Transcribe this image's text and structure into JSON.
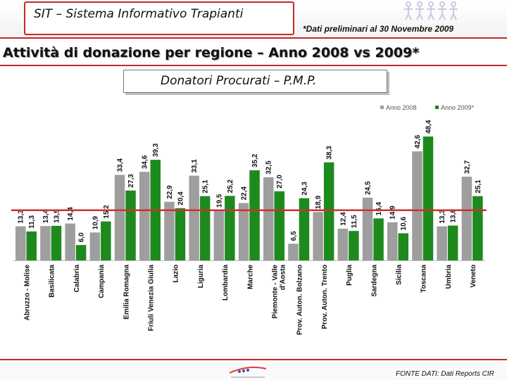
{
  "header": {
    "app_title": "SIT – Sistema Informativo Trapianti",
    "note": "*Dati preliminari al 30 Novembre 2009"
  },
  "page_title": "Attività di donazione per regione – Anno 2008 vs 2009*",
  "subtitle": "Donatori Procurati – P.M.P.",
  "footer": {
    "source": "FONTE DATI: Dati Reports CIR"
  },
  "colors": {
    "series_2008": "#9e9e9e",
    "series_2009": "#1e8a1e",
    "reference_line": "#d32f2f",
    "accent": "#c62828"
  },
  "chart_data": {
    "type": "bar",
    "title": "Donatori Procurati – P.M.P.",
    "categories": [
      "Abruzzo - Molise",
      "Basilicata",
      "Calabria",
      "Campania",
      "Emilia Romagna",
      "Friuli Venezia Giulia",
      "Lazio",
      "Liguria",
      "Lombardia",
      "Marche",
      "Piemonte - Valle d'Aosta",
      "Prov. Auton. Bolzano",
      "Prov. Auton. Trento",
      "Puglia",
      "Sardegna",
      "Sicilia",
      "Toscana",
      "Umbria",
      "Veneto"
    ],
    "series": [
      {
        "name": "Anno 2008",
        "values": [
          13.3,
          13.4,
          14.4,
          10.9,
          33.4,
          34.6,
          22.9,
          33.1,
          19.5,
          22.4,
          32.5,
          6.5,
          18.9,
          12.4,
          24.5,
          14.9,
          42.6,
          13.3,
          32.7
        ]
      },
      {
        "name": "Anno 2009*",
        "values": [
          11.3,
          13.5,
          6.0,
          15.2,
          27.3,
          39.3,
          20.4,
          25.1,
          25.2,
          35.2,
          27.0,
          24.3,
          38.3,
          11.5,
          16.4,
          10.6,
          48.4,
          13.6,
          25.1
        ]
      }
    ],
    "reference_value": 19.6,
    "ylim": [
      0,
      55
    ],
    "legend": "top-right",
    "xlabel": "",
    "ylabel": ""
  }
}
